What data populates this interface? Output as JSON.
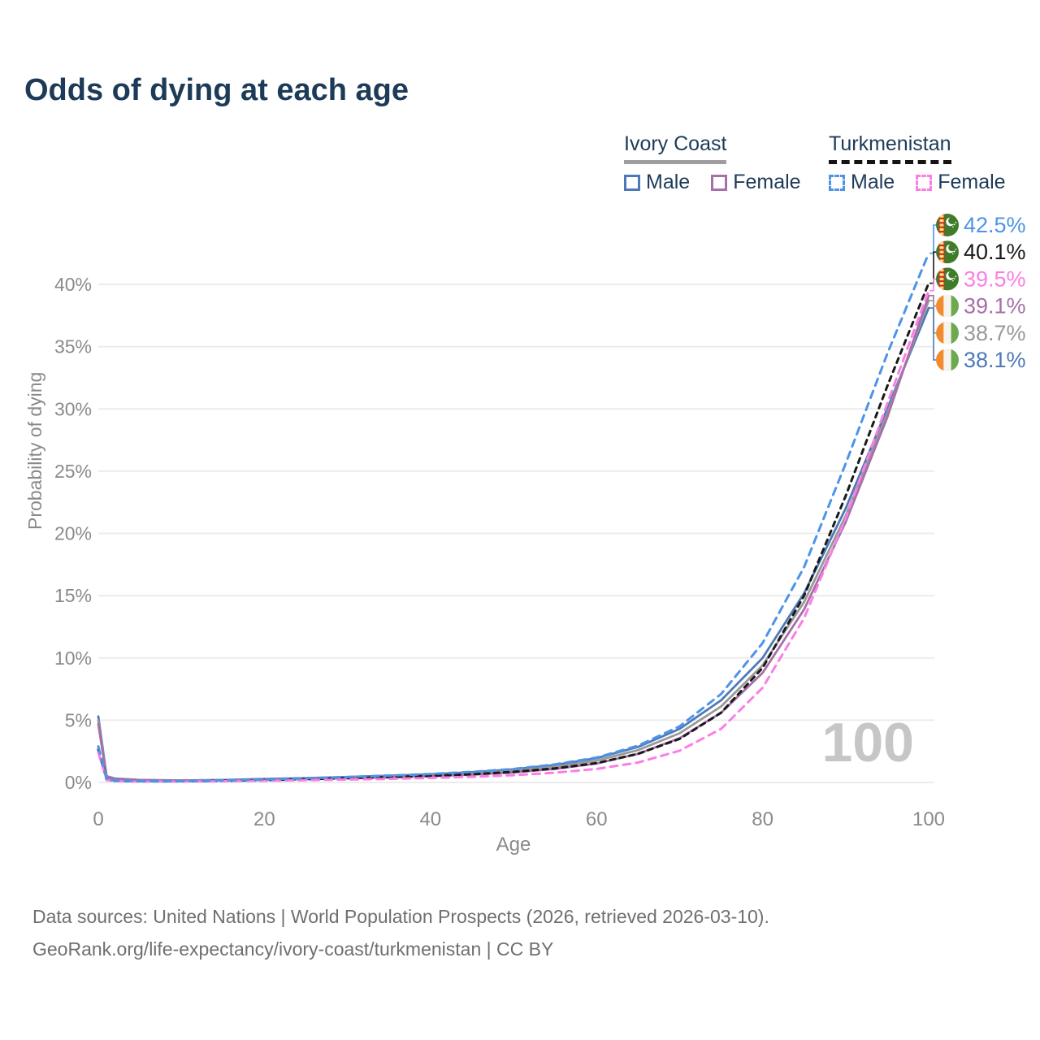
{
  "title": "Odds of dying at each age",
  "legend": {
    "groups": [
      {
        "label": "Ivory Coast",
        "line_style": "solid",
        "underline_color": "#9e9e9e",
        "items": [
          {
            "label": "Male",
            "color": "#4e79b9"
          },
          {
            "label": "Female",
            "color": "#a76fa7"
          }
        ]
      },
      {
        "label": "Turkmenistan",
        "line_style": "dashed",
        "underline_color": "#141414",
        "items": [
          {
            "label": "Male",
            "color": "#4d94e8"
          },
          {
            "label": "Female",
            "color": "#fb7ee6"
          }
        ]
      }
    ]
  },
  "watermark": "100",
  "footer": {
    "line1": "Data sources: United Nations | World Population Prospects (2026, retrieved 2026-03-10).",
    "line2": "GeoRank.org/life-expectancy/ivory-coast/turkmenistan | CC BY"
  },
  "chart_data": {
    "type": "line",
    "title": "Odds of dying at each age",
    "xlabel": "Age",
    "ylabel": "Probability of dying",
    "xlim": [
      0,
      100
    ],
    "ylim": [
      0,
      44
    ],
    "grid": "horizontal-only",
    "x_ticks": [
      0,
      20,
      40,
      60,
      80,
      100
    ],
    "x_tick_labels": [
      "0",
      "20",
      "40",
      "60",
      "80",
      "100"
    ],
    "y_ticks": [
      0,
      5,
      10,
      15,
      20,
      25,
      30,
      35,
      40
    ],
    "y_tick_labels": [
      "0%",
      "5%",
      "10%",
      "15%",
      "20%",
      "25%",
      "30%",
      "35%",
      "40%"
    ],
    "x": [
      0,
      1,
      2,
      5,
      10,
      15,
      20,
      25,
      30,
      35,
      40,
      45,
      50,
      55,
      60,
      65,
      70,
      75,
      80,
      85,
      90,
      95,
      100
    ],
    "series": [
      {
        "name": "Ivory Coast Male",
        "country": "Ivory Coast",
        "sex": "male",
        "style": "solid",
        "color": "#4e79b9",
        "end_value": 38.1,
        "end_label": "38.1%",
        "values": [
          5.3,
          0.5,
          0.32,
          0.2,
          0.16,
          0.2,
          0.28,
          0.35,
          0.44,
          0.54,
          0.66,
          0.82,
          1.05,
          1.4,
          1.95,
          2.85,
          4.3,
          6.6,
          10.0,
          15.2,
          22.0,
          30.0,
          38.1
        ]
      },
      {
        "name": "Ivory Coast Both sexes",
        "country": "Ivory Coast",
        "sex": "both",
        "style": "solid",
        "color": "#999999",
        "end_value": 38.7,
        "end_label": "38.7%",
        "values": [
          5.0,
          0.46,
          0.3,
          0.18,
          0.15,
          0.18,
          0.25,
          0.31,
          0.39,
          0.48,
          0.58,
          0.72,
          0.93,
          1.25,
          1.75,
          2.6,
          3.95,
          6.1,
          9.4,
          14.5,
          21.4,
          29.6,
          38.7
        ]
      },
      {
        "name": "Ivory Coast Female",
        "country": "Ivory Coast",
        "sex": "female",
        "style": "solid",
        "color": "#a76fa7",
        "end_value": 39.1,
        "end_label": "39.1%",
        "values": [
          4.7,
          0.42,
          0.28,
          0.17,
          0.14,
          0.16,
          0.21,
          0.26,
          0.33,
          0.41,
          0.5,
          0.62,
          0.8,
          1.08,
          1.52,
          2.3,
          3.55,
          5.6,
          8.8,
          13.9,
          20.9,
          29.3,
          39.1
        ]
      },
      {
        "name": "Turkmenistan Both sexes",
        "country": "Turkmenistan",
        "sex": "both",
        "style": "dashed",
        "color": "#1a1a1a",
        "end_value": 40.1,
        "end_label": "40.1%",
        "values": [
          2.65,
          0.21,
          0.13,
          0.09,
          0.09,
          0.13,
          0.19,
          0.26,
          0.34,
          0.43,
          0.53,
          0.66,
          0.85,
          1.12,
          1.55,
          2.3,
          3.5,
          5.6,
          9.2,
          15.0,
          23.0,
          31.8,
          40.1
        ]
      },
      {
        "name": "Turkmenistan Female",
        "country": "Turkmenistan",
        "sex": "female",
        "style": "dashed",
        "color": "#fb7ee6",
        "end_value": 39.5,
        "end_label": "39.5%",
        "values": [
          2.4,
          0.19,
          0.11,
          0.08,
          0.08,
          0.1,
          0.14,
          0.18,
          0.23,
          0.29,
          0.36,
          0.45,
          0.58,
          0.78,
          1.08,
          1.6,
          2.55,
          4.3,
          7.6,
          13.2,
          21.2,
          30.4,
          39.5
        ]
      },
      {
        "name": "Turkmenistan Male",
        "country": "Turkmenistan",
        "sex": "male",
        "style": "dashed",
        "color": "#4d94e8",
        "end_value": 42.5,
        "end_label": "42.5%",
        "values": [
          2.9,
          0.24,
          0.15,
          0.1,
          0.1,
          0.16,
          0.24,
          0.33,
          0.43,
          0.55,
          0.68,
          0.85,
          1.08,
          1.45,
          2.0,
          2.95,
          4.5,
          7.1,
          11.2,
          17.3,
          25.6,
          34.4,
          42.5
        ]
      }
    ],
    "end_labels": [
      {
        "value": "42.5%",
        "flag": "turkmenistan",
        "color": "#4d94e8"
      },
      {
        "value": "40.1%",
        "flag": "turkmenistan",
        "color": "#1a1a1a"
      },
      {
        "value": "39.5%",
        "flag": "turkmenistan",
        "color": "#fb7ee6"
      },
      {
        "value": "39.1%",
        "flag": "ivory-coast",
        "color": "#a76fa7"
      },
      {
        "value": "38.7%",
        "flag": "ivory-coast",
        "color": "#999999"
      },
      {
        "value": "38.1%",
        "flag": "ivory-coast",
        "color": "#4e79b9"
      }
    ],
    "legend_position": "top-right"
  }
}
